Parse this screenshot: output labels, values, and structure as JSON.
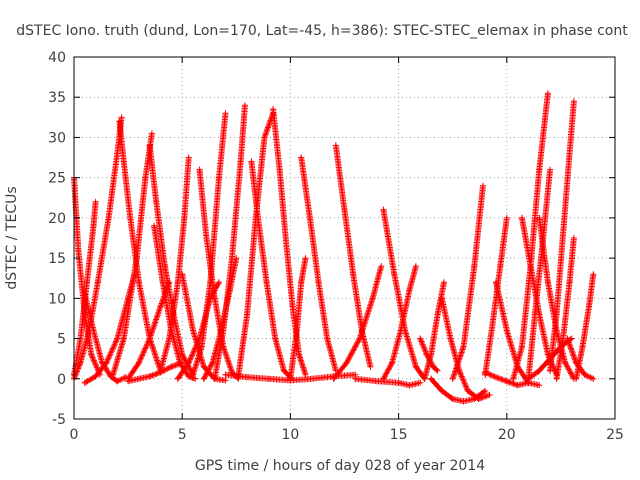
{
  "colors": {
    "series": "#ff0000",
    "grid": "#a0a0a0",
    "axis": "#000000",
    "text": "#404040"
  },
  "chart_data": {
    "type": "scatter",
    "marker": "plus",
    "title": "dSTEC Iono. truth (dund, Lon=170, Lat=-45, h=386): STEC-STEC_elemax in phase cont",
    "xlabel": "GPS time / hours of day 028 of year 2014",
    "ylabel": "dSTEC  / TECUs",
    "xlim": [
      0,
      25
    ],
    "ylim": [
      -5,
      40
    ],
    "xticks": [
      0,
      5,
      10,
      15,
      20,
      25
    ],
    "yticks": [
      -5,
      0,
      5,
      10,
      15,
      20,
      25,
      30,
      35,
      40
    ],
    "grid": true,
    "legend": "none",
    "series": [
      {
        "x": [
          0.0,
          0.2,
          0.5,
          0.8,
          1.2
        ],
        "y": [
          25.0,
          16.0,
          8.0,
          3.0,
          0.5
        ]
      },
      {
        "x": [
          0.0,
          0.3,
          0.6,
          0.9,
          1.0
        ],
        "y": [
          0.5,
          5.0,
          12.0,
          19.0,
          22.0
        ]
      },
      {
        "x": [
          0.0,
          0.3,
          0.7,
          1.1,
          1.6,
          2.0,
          2.2
        ],
        "y": [
          0.0,
          2.0,
          6.0,
          12.0,
          20.0,
          28.0,
          32.5
        ]
      },
      {
        "x": [
          0.5,
          0.9,
          1.3,
          1.7,
          2.0,
          2.4
        ],
        "y": [
          10.5,
          6.0,
          2.0,
          0.3,
          -0.3,
          0.2
        ]
      },
      {
        "x": [
          2.1,
          2.3,
          2.6,
          3.0,
          3.5,
          4.0
        ],
        "y": [
          32.0,
          27.0,
          20.0,
          12.0,
          5.0,
          1.0
        ]
      },
      {
        "x": [
          0.5,
          1.0,
          1.5,
          2.0,
          2.5,
          2.8
        ],
        "y": [
          -0.5,
          0.3,
          2.0,
          5.0,
          10.0,
          13.0
        ]
      },
      {
        "x": [
          1.8,
          2.3,
          2.9,
          3.3,
          3.6
        ],
        "y": [
          0.5,
          5.0,
          15.0,
          25.0,
          30.5
        ]
      },
      {
        "x": [
          3.5,
          3.8,
          4.2,
          4.6,
          5.0,
          5.5
        ],
        "y": [
          29.0,
          22.0,
          14.0,
          8.0,
          3.0,
          0.5
        ]
      },
      {
        "x": [
          2.5,
          3.0,
          3.5,
          4.0,
          4.4
        ],
        "y": [
          0.0,
          2.0,
          5.0,
          9.0,
          12.0
        ]
      },
      {
        "x": [
          4.0,
          4.4,
          4.8,
          5.1,
          5.3
        ],
        "y": [
          1.0,
          5.0,
          12.0,
          20.0,
          27.5
        ]
      },
      {
        "x": [
          2.5,
          3.0,
          3.5,
          4.0,
          4.5,
          5.0
        ],
        "y": [
          -0.3,
          0.0,
          0.3,
          0.8,
          1.5,
          2.0
        ]
      },
      {
        "x": [
          3.7,
          4.1,
          4.5,
          4.9,
          5.3,
          5.6
        ],
        "y": [
          19.0,
          12.0,
          6.0,
          2.0,
          0.3,
          0.0
        ]
      },
      {
        "x": [
          5.0,
          5.5,
          6.0,
          6.5,
          7.0
        ],
        "y": [
          13.0,
          6.0,
          1.5,
          0.0,
          -0.2
        ]
      },
      {
        "x": [
          5.8,
          6.1,
          6.5,
          6.9,
          7.3,
          7.6
        ],
        "y": [
          26.0,
          18.0,
          10.0,
          4.0,
          0.8,
          0.0
        ]
      },
      {
        "x": [
          5.5,
          5.9,
          6.3,
          6.7,
          7.0
        ],
        "y": [
          0.5,
          4.0,
          12.0,
          25.0,
          33.0
        ]
      },
      {
        "x": [
          6.5,
          6.9,
          7.3,
          7.7,
          7.9
        ],
        "y": [
          0.0,
          6.0,
          15.0,
          27.0,
          34.0
        ]
      },
      {
        "x": [
          4.8,
          5.3,
          5.8,
          6.3,
          6.7
        ],
        "y": [
          0.0,
          2.0,
          5.0,
          10.0,
          12.0
        ]
      },
      {
        "x": [
          6.0,
          6.4,
          6.8,
          7.2,
          7.5
        ],
        "y": [
          0.0,
          2.0,
          6.0,
          11.0,
          15.0
        ]
      },
      {
        "x": [
          7.6,
          8.0,
          8.4,
          8.8,
          9.2
        ],
        "y": [
          0.5,
          8.0,
          20.0,
          30.0,
          33.0
        ]
      },
      {
        "x": [
          8.2,
          8.5,
          8.9,
          9.3,
          9.7,
          10.0
        ],
        "y": [
          27.0,
          20.0,
          12.0,
          5.0,
          1.0,
          0.2
        ]
      },
      {
        "x": [
          9.2,
          9.5,
          9.8,
          10.1,
          10.4,
          10.7
        ],
        "y": [
          33.5,
          26.0,
          17.0,
          9.0,
          3.0,
          0.5
        ]
      },
      {
        "x": [
          10.0,
          10.3,
          10.5,
          10.7
        ],
        "y": [
          0.0,
          6.0,
          12.0,
          15.0
        ]
      },
      {
        "x": [
          10.5,
          10.9,
          11.3,
          11.7,
          12.1
        ],
        "y": [
          27.5,
          20.0,
          12.0,
          5.0,
          1.0
        ]
      },
      {
        "x": [
          12.1,
          12.5,
          12.9,
          13.3,
          13.7
        ],
        "y": [
          29.0,
          21.0,
          13.0,
          6.0,
          1.5
        ]
      },
      {
        "x": [
          12.0,
          12.6,
          13.2,
          13.8,
          14.2
        ],
        "y": [
          0.0,
          2.0,
          5.0,
          10.0,
          14.0
        ]
      },
      {
        "x": [
          7.0,
          8.0,
          9.0,
          10.0,
          11.0,
          12.0,
          13.0
        ],
        "y": [
          0.5,
          0.2,
          0.0,
          -0.2,
          0.0,
          0.3,
          0.5
        ]
      },
      {
        "x": [
          13.0,
          14.0,
          15.0,
          15.5,
          16.0
        ],
        "y": [
          0.0,
          -0.3,
          -0.5,
          -0.8,
          -0.5
        ]
      },
      {
        "x": [
          14.3,
          14.8,
          15.3,
          15.8,
          16.2
        ],
        "y": [
          21.0,
          13.0,
          6.0,
          1.5,
          0.0
        ]
      },
      {
        "x": [
          14.3,
          14.7,
          15.1,
          15.5,
          15.8
        ],
        "y": [
          0.0,
          2.0,
          6.0,
          11.0,
          14.0
        ]
      },
      {
        "x": [
          16.0,
          16.3,
          16.6,
          16.8
        ],
        "y": [
          5.0,
          3.0,
          1.5,
          1.0
        ]
      },
      {
        "x": [
          16.2,
          16.5,
          16.8,
          17.1
        ],
        "y": [
          0.0,
          3.0,
          8.0,
          12.0
        ]
      },
      {
        "x": [
          17.0,
          17.4,
          17.8,
          18.2,
          18.7,
          19.2
        ],
        "y": [
          10.0,
          5.0,
          1.0,
          -1.5,
          -2.5,
          -2.0
        ]
      },
      {
        "x": [
          16.5,
          17.0,
          17.5,
          18.0,
          18.5,
          19.0
        ],
        "y": [
          0.0,
          -1.5,
          -2.5,
          -2.8,
          -2.5,
          -1.5
        ]
      },
      {
        "x": [
          17.5,
          18.0,
          18.5,
          18.9
        ],
        "y": [
          0.0,
          4.0,
          14.0,
          24.0
        ]
      },
      {
        "x": [
          19.0,
          19.3,
          19.7,
          20.0
        ],
        "y": [
          0.5,
          6.0,
          14.0,
          20.0
        ]
      },
      {
        "x": [
          19.5,
          20.0,
          20.5,
          21.0,
          21.5
        ],
        "y": [
          12.0,
          6.0,
          1.5,
          -0.5,
          -0.8
        ]
      },
      {
        "x": [
          19.0,
          19.5,
          20.0,
          20.5,
          21.0
        ],
        "y": [
          0.8,
          0.2,
          -0.3,
          -0.8,
          -0.5
        ]
      },
      {
        "x": [
          20.7,
          21.1,
          21.5,
          21.9,
          22.3
        ],
        "y": [
          20.0,
          14.0,
          8.0,
          3.0,
          0.5
        ]
      },
      {
        "x": [
          20.3,
          20.7,
          21.1,
          21.5,
          21.9
        ],
        "y": [
          0.0,
          4.0,
          14.0,
          26.0,
          35.5
        ]
      },
      {
        "x": [
          21.0,
          21.3,
          21.7,
          22.0
        ],
        "y": [
          0.0,
          8.0,
          18.0,
          26.0
        ]
      },
      {
        "x": [
          21.5,
          21.9,
          22.3,
          22.7,
          23.1
        ],
        "y": [
          20.0,
          12.0,
          6.0,
          2.0,
          0.0
        ]
      },
      {
        "x": [
          22.0,
          22.3,
          22.6,
          22.9,
          23.1
        ],
        "y": [
          1.0,
          8.0,
          18.0,
          28.0,
          34.5
        ]
      },
      {
        "x": [
          22.3,
          22.6,
          22.9,
          23.1
        ],
        "y": [
          0.0,
          5.0,
          12.0,
          17.5
        ]
      },
      {
        "x": [
          21.0,
          21.5,
          22.0,
          22.5,
          23.0
        ],
        "y": [
          0.0,
          1.0,
          2.5,
          4.0,
          5.0
        ]
      },
      {
        "x": [
          22.8,
          23.2,
          23.6,
          24.0
        ],
        "y": [
          5.0,
          2.0,
          0.5,
          0.0
        ]
      },
      {
        "x": [
          23.2,
          23.5,
          23.8,
          24.0
        ],
        "y": [
          0.0,
          4.0,
          9.0,
          13.0
        ]
      }
    ]
  }
}
